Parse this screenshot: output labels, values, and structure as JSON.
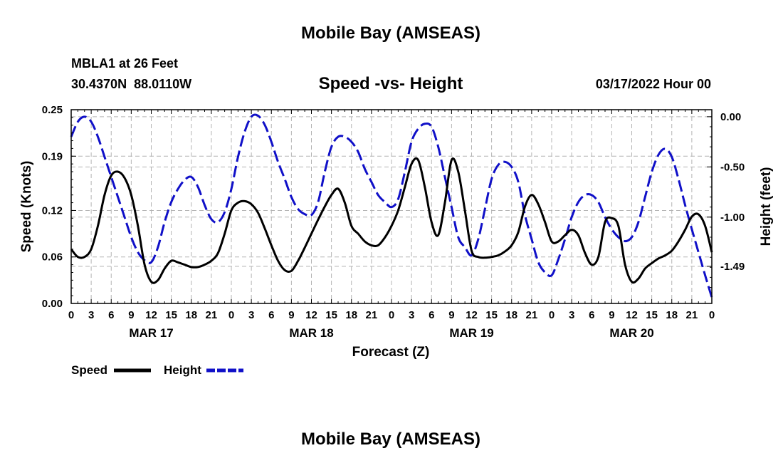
{
  "header": {
    "title": "Mobile Bay (AMSEAS)",
    "station": "MBLA1 at 26 Feet",
    "coords": "30.4370N  88.0110W",
    "chart_title": "Speed -vs- Height",
    "date": "03/17/2022 Hour 00"
  },
  "footer": {
    "title": "Mobile Bay (AMSEAS)"
  },
  "colors": {
    "speed": "#000000",
    "height": "#1010c8",
    "grid": "#b4b4b4"
  },
  "chart_data": {
    "type": "line",
    "title": "Speed -vs- Height",
    "xlabel": "Forecast (Z)",
    "ylabel": "Speed (Knots)",
    "y2label": "Height (feet)",
    "xlim": [
      0,
      96
    ],
    "ylim": [
      0,
      0.25
    ],
    "y2lim": [
      -1.86,
      0.07
    ],
    "x_ticks": [
      0,
      3,
      6,
      9,
      12,
      15,
      18,
      21,
      24,
      27,
      30,
      33,
      36,
      39,
      42,
      45,
      48,
      51,
      54,
      57,
      60,
      63,
      66,
      69,
      72,
      75,
      78,
      81,
      84,
      87,
      90,
      93,
      96
    ],
    "x_tick_labels": [
      "0",
      "3",
      "6",
      "9",
      "12",
      "15",
      "18",
      "21",
      "0",
      "3",
      "6",
      "9",
      "12",
      "15",
      "18",
      "21",
      "0",
      "3",
      "6",
      "9",
      "12",
      "15",
      "18",
      "21",
      "0",
      "3",
      "6",
      "9",
      "12",
      "15",
      "18",
      "21",
      "0"
    ],
    "date_labels": [
      {
        "x": 12,
        "label": "MAR 17"
      },
      {
        "x": 36,
        "label": "MAR 18"
      },
      {
        "x": 60,
        "label": "MAR 19"
      },
      {
        "x": 84,
        "label": "MAR 20"
      }
    ],
    "y_ticks": [
      0.0,
      0.06,
      0.12,
      0.19,
      0.25
    ],
    "y_tick_labels": [
      "0.00",
      "0.06",
      "0.12",
      "0.19",
      "0.25"
    ],
    "y2_ticks": [
      0.0,
      -0.5,
      -1.0,
      -1.49
    ],
    "y2_tick_labels": [
      "0.00",
      "-0.50",
      "-1.00",
      "-1.49"
    ],
    "legend": [
      "Speed",
      "Height"
    ],
    "series": [
      {
        "name": "Speed",
        "axis": "left",
        "style": "solid",
        "points": [
          [
            0,
            0.07
          ],
          [
            1,
            0.06
          ],
          [
            2,
            0.06
          ],
          [
            3,
            0.07
          ],
          [
            4,
            0.1
          ],
          [
            5,
            0.14
          ],
          [
            6,
            0.165
          ],
          [
            7,
            0.17
          ],
          [
            8,
            0.162
          ],
          [
            9,
            0.14
          ],
          [
            10,
            0.1
          ],
          [
            11,
            0.05
          ],
          [
            12,
            0.028
          ],
          [
            13,
            0.03
          ],
          [
            14,
            0.045
          ],
          [
            15,
            0.055
          ],
          [
            16,
            0.053
          ],
          [
            17,
            0.05
          ],
          [
            18,
            0.047
          ],
          [
            19,
            0.047
          ],
          [
            20,
            0.05
          ],
          [
            21,
            0.055
          ],
          [
            22,
            0.065
          ],
          [
            23,
            0.09
          ],
          [
            24,
            0.12
          ],
          [
            25,
            0.13
          ],
          [
            26,
            0.132
          ],
          [
            27,
            0.128
          ],
          [
            28,
            0.117
          ],
          [
            29,
            0.097
          ],
          [
            30,
            0.075
          ],
          [
            31,
            0.055
          ],
          [
            32,
            0.043
          ],
          [
            33,
            0.042
          ],
          [
            34,
            0.055
          ],
          [
            35,
            0.072
          ],
          [
            36,
            0.09
          ],
          [
            37,
            0.108
          ],
          [
            38,
            0.125
          ],
          [
            39,
            0.14
          ],
          [
            40,
            0.148
          ],
          [
            41,
            0.13
          ],
          [
            42,
            0.1
          ],
          [
            43,
            0.09
          ],
          [
            44,
            0.08
          ],
          [
            45,
            0.075
          ],
          [
            46,
            0.075
          ],
          [
            47,
            0.085
          ],
          [
            48,
            0.1
          ],
          [
            49,
            0.12
          ],
          [
            50,
            0.15
          ],
          [
            51,
            0.18
          ],
          [
            52,
            0.185
          ],
          [
            53,
            0.15
          ],
          [
            54,
            0.105
          ],
          [
            55,
            0.088
          ],
          [
            56,
            0.13
          ],
          [
            57,
            0.185
          ],
          [
            58,
            0.17
          ],
          [
            59,
            0.12
          ],
          [
            60,
            0.068
          ],
          [
            61,
            0.06
          ],
          [
            62,
            0.059
          ],
          [
            63,
            0.06
          ],
          [
            64,
            0.062
          ],
          [
            65,
            0.067
          ],
          [
            66,
            0.075
          ],
          [
            67,
            0.092
          ],
          [
            68,
            0.125
          ],
          [
            69,
            0.14
          ],
          [
            70,
            0.128
          ],
          [
            71,
            0.105
          ],
          [
            72,
            0.08
          ],
          [
            73,
            0.08
          ],
          [
            74,
            0.088
          ],
          [
            75,
            0.095
          ],
          [
            76,
            0.088
          ],
          [
            77,
            0.065
          ],
          [
            78,
            0.05
          ],
          [
            79,
            0.06
          ],
          [
            80,
            0.105
          ],
          [
            81,
            0.11
          ],
          [
            82,
            0.1
          ],
          [
            83,
            0.05
          ],
          [
            84,
            0.028
          ],
          [
            85,
            0.032
          ],
          [
            86,
            0.045
          ],
          [
            87,
            0.052
          ],
          [
            88,
            0.058
          ],
          [
            89,
            0.062
          ],
          [
            90,
            0.068
          ],
          [
            91,
            0.08
          ],
          [
            92,
            0.095
          ],
          [
            93,
            0.112
          ],
          [
            94,
            0.115
          ],
          [
            95,
            0.1
          ],
          [
            96,
            0.066
          ]
        ]
      },
      {
        "name": "Height",
        "axis": "right",
        "style": "dashed",
        "points": [
          [
            0,
            -0.2
          ],
          [
            1,
            -0.05
          ],
          [
            2,
            0.0
          ],
          [
            3,
            -0.05
          ],
          [
            4,
            -0.2
          ],
          [
            5,
            -0.4
          ],
          [
            6,
            -0.6
          ],
          [
            7,
            -0.8
          ],
          [
            8,
            -1.0
          ],
          [
            9,
            -1.2
          ],
          [
            10,
            -1.35
          ],
          [
            11,
            -1.43
          ],
          [
            12,
            -1.45
          ],
          [
            13,
            -1.3
          ],
          [
            14,
            -1.05
          ],
          [
            15,
            -0.85
          ],
          [
            16,
            -0.72
          ],
          [
            17,
            -0.63
          ],
          [
            18,
            -0.6
          ],
          [
            19,
            -0.7
          ],
          [
            20,
            -0.88
          ],
          [
            21,
            -1.02
          ],
          [
            22,
            -1.05
          ],
          [
            23,
            -0.95
          ],
          [
            24,
            -0.72
          ],
          [
            25,
            -0.4
          ],
          [
            26,
            -0.15
          ],
          [
            27,
            0.0
          ],
          [
            28,
            0.01
          ],
          [
            29,
            -0.08
          ],
          [
            30,
            -0.25
          ],
          [
            31,
            -0.45
          ],
          [
            32,
            -0.62
          ],
          [
            33,
            -0.8
          ],
          [
            34,
            -0.92
          ],
          [
            35,
            -0.97
          ],
          [
            36,
            -0.98
          ],
          [
            37,
            -0.85
          ],
          [
            38,
            -0.55
          ],
          [
            39,
            -0.3
          ],
          [
            40,
            -0.2
          ],
          [
            41,
            -0.2
          ],
          [
            42,
            -0.25
          ],
          [
            43,
            -0.35
          ],
          [
            44,
            -0.52
          ],
          [
            45,
            -0.65
          ],
          [
            46,
            -0.78
          ],
          [
            47,
            -0.85
          ],
          [
            48,
            -0.9
          ],
          [
            49,
            -0.82
          ],
          [
            50,
            -0.55
          ],
          [
            51,
            -0.25
          ],
          [
            52,
            -0.12
          ],
          [
            53,
            -0.07
          ],
          [
            54,
            -0.1
          ],
          [
            55,
            -0.3
          ],
          [
            56,
            -0.6
          ],
          [
            57,
            -0.9
          ],
          [
            58,
            -1.2
          ],
          [
            59,
            -1.3
          ],
          [
            60,
            -1.38
          ],
          [
            61,
            -1.22
          ],
          [
            62,
            -0.92
          ],
          [
            63,
            -0.62
          ],
          [
            64,
            -0.48
          ],
          [
            65,
            -0.45
          ],
          [
            66,
            -0.5
          ],
          [
            67,
            -0.65
          ],
          [
            68,
            -0.98
          ],
          [
            69,
            -1.22
          ],
          [
            70,
            -1.45
          ],
          [
            71,
            -1.55
          ],
          [
            72,
            -1.58
          ],
          [
            73,
            -1.42
          ],
          [
            74,
            -1.22
          ],
          [
            75,
            -1.0
          ],
          [
            76,
            -0.85
          ],
          [
            77,
            -0.78
          ],
          [
            78,
            -0.78
          ],
          [
            79,
            -0.85
          ],
          [
            80,
            -1.0
          ],
          [
            81,
            -1.12
          ],
          [
            82,
            -1.2
          ],
          [
            83,
            -1.24
          ],
          [
            84,
            -1.2
          ],
          [
            85,
            -1.05
          ],
          [
            86,
            -0.8
          ],
          [
            87,
            -0.55
          ],
          [
            88,
            -0.38
          ],
          [
            89,
            -0.32
          ],
          [
            90,
            -0.4
          ],
          [
            91,
            -0.62
          ],
          [
            92,
            -0.88
          ],
          [
            93,
            -1.12
          ],
          [
            94,
            -1.35
          ],
          [
            95,
            -1.58
          ],
          [
            96,
            -1.8
          ]
        ]
      }
    ]
  }
}
